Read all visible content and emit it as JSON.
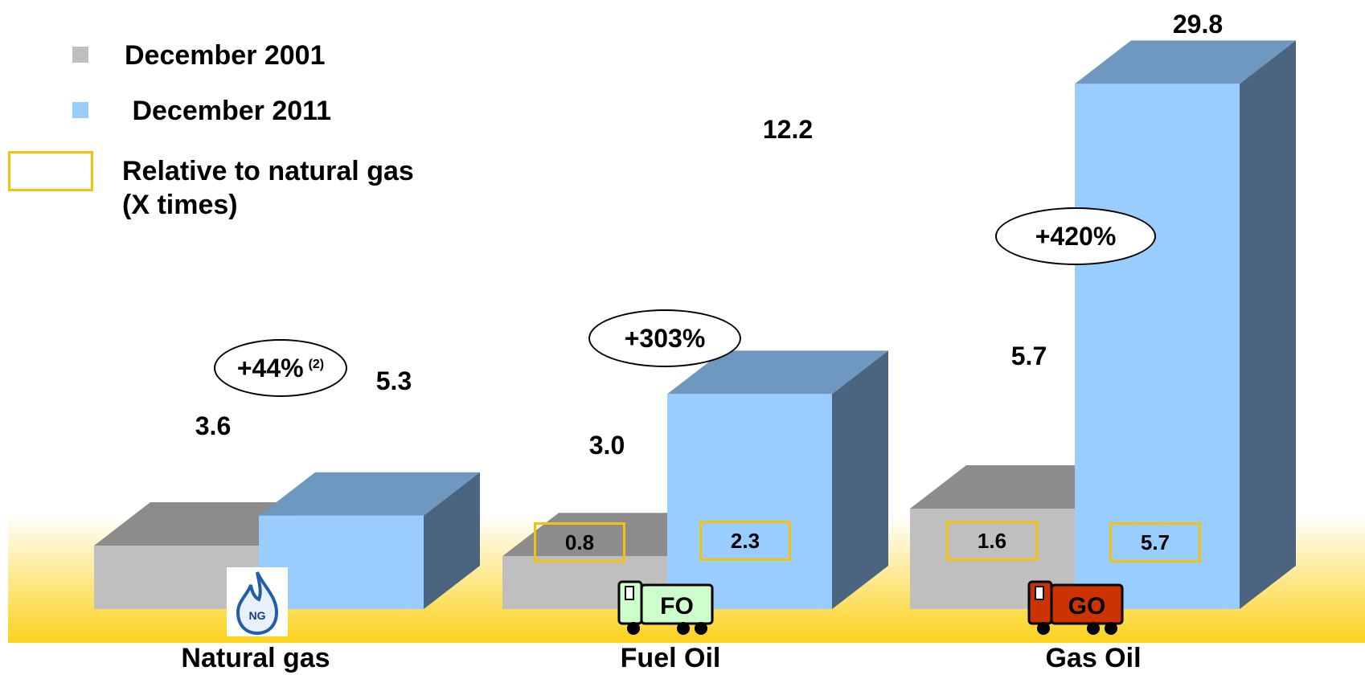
{
  "chart_data": {
    "type": "bar",
    "style": "3d-clustered",
    "categories": [
      "Natural gas",
      "Fuel Oil",
      "Gas Oil"
    ],
    "series": [
      {
        "name": "December 2001",
        "values": [
          3.6,
          3.0,
          5.7
        ],
        "color": "#bfbfbf",
        "top_color": "#8c8c8c"
      },
      {
        "name": " December 2011",
        "values": [
          5.3,
          12.2,
          29.8
        ],
        "color": "#99ccff",
        "top_color": "#6f98c0",
        "side_color": "#4b6580"
      }
    ],
    "value_labels": {
      "series0": [
        "3.6",
        "3.0",
        "5.7"
      ],
      "series1": [
        "5.3",
        "12.2",
        "29.8"
      ]
    },
    "growth": [
      {
        "text": "+44%",
        "note": "(2)"
      },
      {
        "text": "+303%",
        "note": ""
      },
      {
        "text": "+420%",
        "note": ""
      }
    ],
    "relative_to_natural_gas": {
      "series0": [
        "",
        "0.8",
        "1.6"
      ],
      "series1": [
        "",
        "2.3",
        "5.7"
      ]
    },
    "ylim": [
      0,
      31
    ],
    "legend_placement": "top-left",
    "legend_extra": "Relative to natural gas\n(X times)",
    "ratio_box_color": "#f4c20d",
    "floor_gradient": [
      "#ffffff",
      "#fcd21c"
    ]
  },
  "icons": {
    "natural_gas": {
      "name": "natural-gas-flame-icon",
      "text": "NG"
    },
    "fuel_oil": {
      "name": "fuel-oil-truck-icon",
      "text": "FO",
      "color": "#ccffcc"
    },
    "gas_oil": {
      "name": "gas-oil-truck-icon",
      "text": "GO",
      "color": "#cc3300"
    }
  }
}
